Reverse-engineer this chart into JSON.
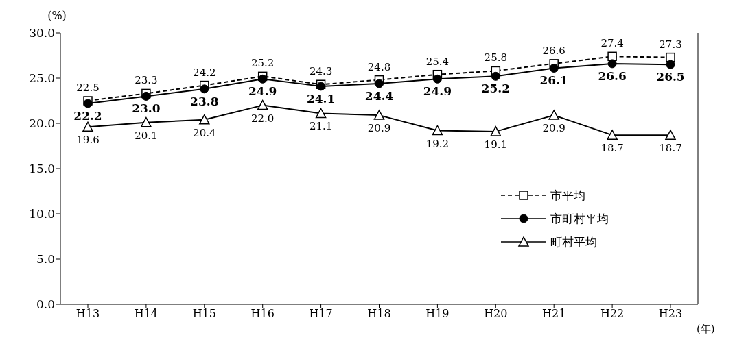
{
  "chart_data": {
    "type": "line",
    "ylabel": "(%)",
    "xlabel": "(年)",
    "categories": [
      "H13",
      "H14",
      "H15",
      "H16",
      "H17",
      "H18",
      "H19",
      "H20",
      "H21",
      "H22",
      "H23"
    ],
    "ylim": [
      0,
      30
    ],
    "yticks": [
      {
        "value": 0,
        "label": "0.0"
      },
      {
        "value": 5,
        "label": "5.0"
      },
      {
        "value": 10,
        "label": "10.0"
      },
      {
        "value": 15,
        "label": "15.0"
      },
      {
        "value": 20,
        "label": "20.0"
      },
      {
        "value": 25,
        "label": "25.0"
      },
      {
        "value": 30,
        "label": "30.0"
      }
    ],
    "grid": false,
    "legend": "right",
    "series": [
      {
        "name": "市平均",
        "color": "#000000",
        "marker": "square",
        "line_style": "dashed",
        "values": [
          22.5,
          23.3,
          24.2,
          25.2,
          24.3,
          24.8,
          25.4,
          25.8,
          26.6,
          27.4,
          27.3
        ],
        "value_labels": [
          "22.5",
          "23.3",
          "24.2",
          "25.2",
          "24.3",
          "24.8",
          "25.4",
          "25.8",
          "26.6",
          "27.4",
          "27.3"
        ]
      },
      {
        "name": "市町村平均",
        "color": "#000000",
        "marker": "circle",
        "line_style": "solid",
        "values": [
          22.2,
          23.0,
          23.8,
          24.9,
          24.1,
          24.4,
          24.9,
          25.2,
          26.1,
          26.6,
          26.5
        ],
        "value_labels": [
          "22.2",
          "23.0",
          "23.8",
          "24.9",
          "24.1",
          "24.4",
          "24.9",
          "25.2",
          "26.1",
          "26.6",
          "26.5"
        ]
      },
      {
        "name": "町村平均",
        "color": "#000000",
        "marker": "triangle",
        "line_style": "solid",
        "values": [
          19.6,
          20.1,
          20.4,
          22.0,
          21.1,
          20.9,
          19.2,
          19.1,
          20.9,
          18.7,
          18.7
        ],
        "value_labels": [
          "19.6",
          "20.1",
          "20.4",
          "22.0",
          "21.1",
          "20.9",
          "19.2",
          "19.1",
          "20.9",
          "18.7",
          "18.7"
        ]
      }
    ]
  }
}
